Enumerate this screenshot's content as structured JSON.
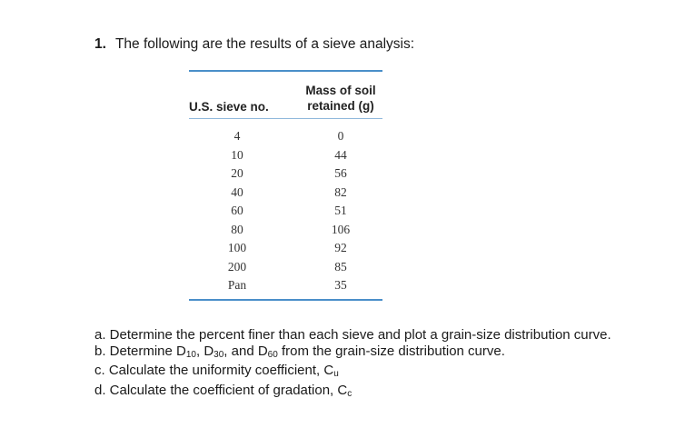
{
  "question": {
    "number": "1.",
    "text": "The following are the results of a sieve analysis:"
  },
  "table": {
    "header_sieve": "U.S. sieve no.",
    "header_mass_line1": "Mass of soil",
    "header_mass_line2": "retained (g)",
    "rows": [
      {
        "sieve": "4",
        "mass": "0"
      },
      {
        "sieve": "10",
        "mass": "44"
      },
      {
        "sieve": "20",
        "mass": "56"
      },
      {
        "sieve": "40",
        "mass": "82"
      },
      {
        "sieve": "60",
        "mass": "51"
      },
      {
        "sieve": "80",
        "mass": "106"
      },
      {
        "sieve": "100",
        "mass": "92"
      },
      {
        "sieve": "200",
        "mass": "85"
      },
      {
        "sieve": "Pan",
        "mass": "35"
      }
    ]
  },
  "tasks": {
    "a": "a. Determine the percent finer than each sieve and plot a grain-size distribution curve.",
    "b_prefix": "b. Determine D",
    "b_sub1": "10",
    "b_sep1": ", D",
    "b_sub2": "30",
    "b_sep2": ", and D",
    "b_sub3": "60",
    "b_suffix": " from the grain-size distribution curve.",
    "c_prefix": "c. Calculate the uniformity coefficient, C",
    "c_sub": "u",
    "d_prefix": "d. Calculate the coefficient of gradation, C",
    "d_sub": "c"
  }
}
